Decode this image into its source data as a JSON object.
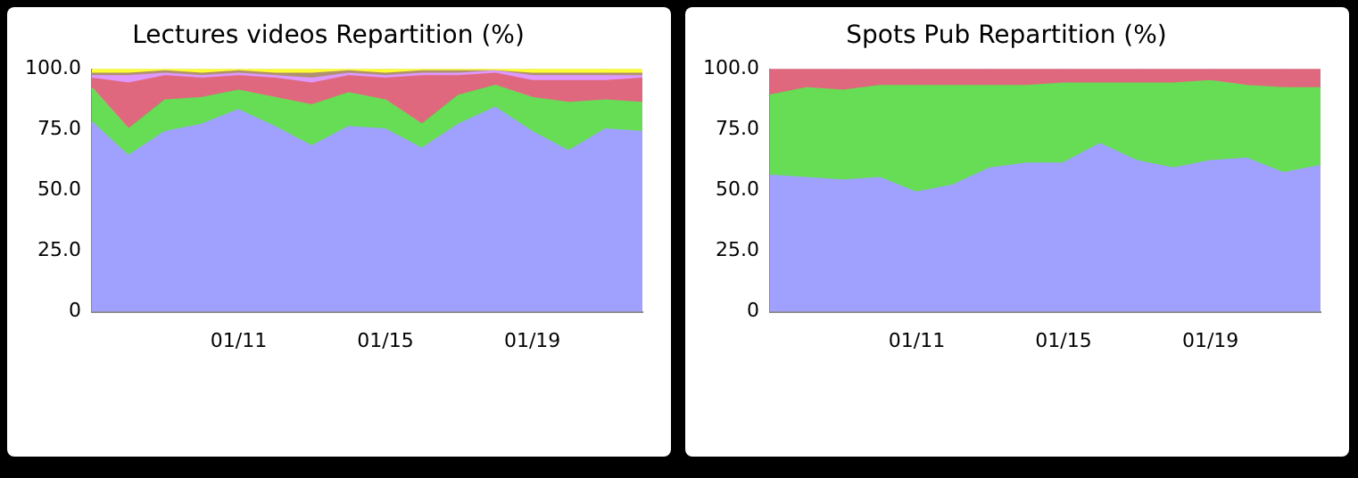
{
  "chart_data": [
    {
      "type": "area",
      "title": "Lectures videos Repartition (%)",
      "stacked": true,
      "categories": [
        null,
        null,
        null,
        null,
        "01/11",
        null,
        null,
        null,
        "01/15",
        null,
        null,
        null,
        "01/19",
        null,
        null,
        null
      ],
      "series": [
        {
          "color": "#a0a0ff",
          "values": [
            78,
            64,
            74,
            77,
            83,
            76,
            68,
            76,
            75,
            67,
            77,
            84,
            74,
            66,
            75,
            74
          ]
        },
        {
          "color": "#66dd55",
          "values": [
            14,
            11,
            13,
            11,
            8,
            12,
            17,
            14,
            12,
            10,
            12,
            9,
            14,
            20,
            12,
            12
          ]
        },
        {
          "color": "#e0687e",
          "values": [
            4,
            19,
            10,
            8,
            6,
            8,
            9,
            7,
            9,
            20,
            8,
            5,
            7,
            9,
            8,
            10
          ]
        },
        {
          "color": "#dd99ff",
          "values": [
            1,
            3,
            1,
            1,
            1,
            1,
            2,
            1,
            1,
            1,
            1,
            1,
            2,
            2,
            2,
            1
          ]
        },
        {
          "color": "#b09070",
          "values": [
            1,
            1,
            1,
            1,
            1,
            1,
            2,
            1,
            1,
            1,
            1,
            0,
            1,
            1,
            1,
            1
          ]
        },
        {
          "color": "#ffff33",
          "values": [
            2,
            2,
            1,
            2,
            1,
            2,
            2,
            1,
            2,
            1,
            1,
            1,
            2,
            2,
            2,
            2
          ]
        }
      ],
      "ylim": [
        0,
        100
      ],
      "yticks": [
        0,
        {
          "value": 25,
          "label": "25.0"
        },
        {
          "value": 50,
          "label": "50.0"
        },
        {
          "value": 75,
          "label": "75.0"
        },
        {
          "value": 100,
          "label": "100.0"
        }
      ],
      "grid": true
    },
    {
      "type": "area",
      "title": "Spots Pub Repartition (%)",
      "stacked": true,
      "categories": [
        null,
        null,
        null,
        null,
        "01/11",
        null,
        null,
        null,
        "01/15",
        null,
        null,
        null,
        "01/19",
        null,
        null,
        null
      ],
      "series": [
        {
          "color": "#a0a0ff",
          "values": [
            56,
            55,
            54,
            55,
            49,
            52,
            59,
            61,
            61,
            69,
            62,
            59,
            62,
            63,
            57,
            60
          ]
        },
        {
          "color": "#66dd55",
          "values": [
            33,
            37,
            37,
            38,
            44,
            41,
            34,
            32,
            33,
            25,
            32,
            35,
            33,
            30,
            35,
            32
          ]
        },
        {
          "color": "#e0687e",
          "values": [
            11,
            8,
            9,
            7,
            7,
            7,
            7,
            7,
            6,
            6,
            6,
            6,
            5,
            7,
            8,
            8
          ]
        }
      ],
      "ylim": [
        0,
        100
      ],
      "yticks": [
        0,
        {
          "value": 25,
          "label": "25.0"
        },
        {
          "value": 50,
          "label": "50.0"
        },
        {
          "value": 75,
          "label": "75.0"
        },
        {
          "value": 100,
          "label": "100.0"
        }
      ],
      "grid": true
    }
  ]
}
